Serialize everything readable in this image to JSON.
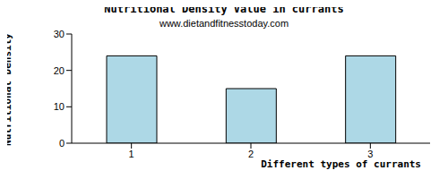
{
  "chart_data": {
    "type": "bar",
    "title": "Nutritional Density Value in currants",
    "subtitle": "www.dietandfitnesstoday.com",
    "x_label": "Different types of currants",
    "y_label": "Nutritional Density",
    "categories": [
      "1",
      "2",
      "3"
    ],
    "values": [
      24,
      15,
      24
    ],
    "color": "#add8e6",
    "ylim": [
      0,
      30
    ],
    "yticks": [
      0,
      10,
      20,
      30
    ],
    "grid": false
  }
}
